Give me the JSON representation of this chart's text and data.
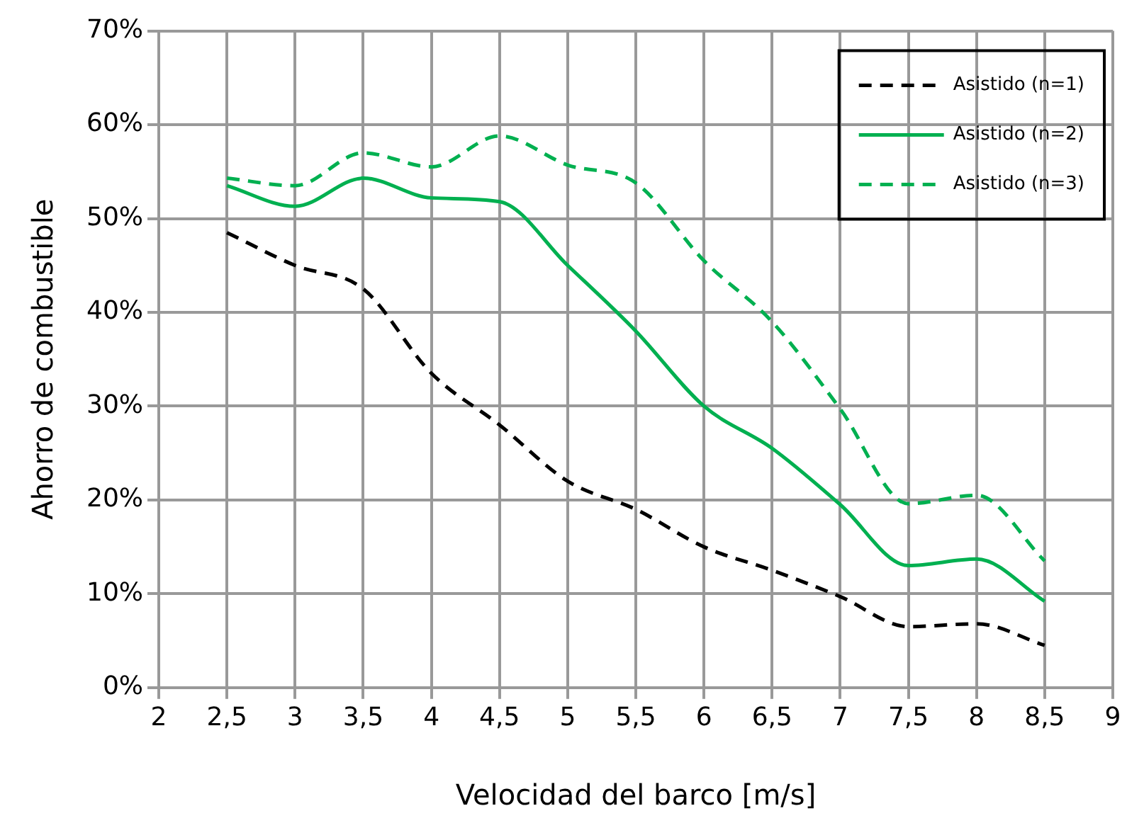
{
  "chart_data": {
    "type": "line",
    "xlabel": "Velocidad del barco [m/s]",
    "ylabel": "Ahorro de combustible",
    "x": [
      2.5,
      3,
      3.5,
      4,
      4.5,
      5,
      5.5,
      6,
      6.5,
      7,
      7.5,
      8,
      8.5
    ],
    "series": [
      {
        "name": "Asistido (n=1)",
        "color": "#000000",
        "line_style": "dashed",
        "values": [
          48.5,
          45,
          42.5,
          33.5,
          28,
          22,
          19,
          15,
          12.5,
          9.7,
          6.5,
          6.8,
          4.5
        ]
      },
      {
        "name": "Asistido (n=2)",
        "color": "#00b050",
        "line_style": "solid",
        "values": [
          53.5,
          51.3,
          54.3,
          52.2,
          51.8,
          45,
          38,
          30,
          25.5,
          19.5,
          13,
          13.7,
          9.2
        ]
      },
      {
        "name": "Asistido (n=3)",
        "color": "#00b050",
        "line_style": "dashed",
        "values": [
          54.3,
          53.5,
          57,
          55.5,
          58.8,
          55.7,
          53.8,
          45.5,
          39,
          29.7,
          19.6,
          20.5,
          13.5
        ]
      }
    ],
    "xlim": [
      2,
      9
    ],
    "xticks": [
      2,
      {
        "value": 2.5,
        "label": "2,5"
      },
      3,
      {
        "value": 3.5,
        "label": "3,5"
      },
      4,
      {
        "value": 4.5,
        "label": "4,5"
      },
      5,
      {
        "value": 5.5,
        "label": "5,5"
      },
      6,
      {
        "value": 6.5,
        "label": "6,5"
      },
      7,
      {
        "value": 7.5,
        "label": "7,5"
      },
      8,
      {
        "value": 8.5,
        "label": "8,5"
      },
      9
    ],
    "ylim": [
      0,
      70
    ],
    "yticks": [
      {
        "value": 0,
        "label": "0%"
      },
      {
        "value": 10,
        "label": "10%"
      },
      {
        "value": 20,
        "label": "20%"
      },
      {
        "value": 30,
        "label": "30%"
      },
      {
        "value": 40,
        "label": "40%"
      },
      {
        "value": 50,
        "label": "50%"
      },
      {
        "value": 60,
        "label": "60%"
      },
      {
        "value": 70,
        "label": "70%"
      }
    ],
    "grid": true,
    "legend": "top right",
    "marker": "none"
  }
}
